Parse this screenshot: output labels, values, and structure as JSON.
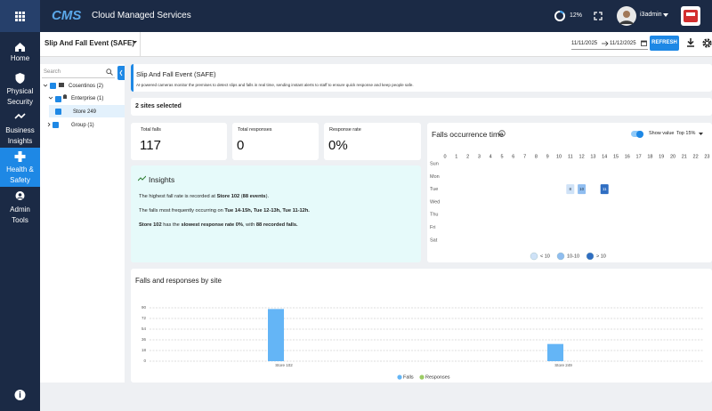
{
  "topbar": {
    "logo": "CMS",
    "app_name": "Cloud Managed Services",
    "progress": "12%",
    "user": "i3admin"
  },
  "sidebar": {
    "items": [
      "Home",
      "Physical Security",
      "Business Insights",
      "Health & Safety",
      "Admin Tools"
    ],
    "active": 3
  },
  "header": {
    "module": "Slip And Fall Event (SAFE)",
    "date_from": "11/11/2025",
    "date_to": "11/12/2025",
    "refresh": "REFRESH"
  },
  "tree": {
    "search_placeholder": "Search",
    "nodes": [
      "Cosentinos (2)",
      "Enterprise (1)",
      "Store 249",
      "Group (1)"
    ]
  },
  "intro": {
    "title": "Slip And Fall Event (SAFE)",
    "description": "AI-powered cameras monitor the premises to detect slips and falls in real time, sending instant alerts to staff to ensure quick response and keep people safe."
  },
  "sites_selected": "2 sites selected",
  "stats": [
    {
      "label": "Total falls",
      "value": "117"
    },
    {
      "label": "Total responses",
      "value": "0"
    },
    {
      "label": "Response rate",
      "value": "0%"
    }
  ],
  "insights": {
    "title": "Insights",
    "lines": [
      [
        {
          "text": "The highest fall rate is recorded at "
        },
        {
          "text": "Store 102",
          "bold": true
        },
        {
          "text": " ("
        },
        {
          "text": "88 events",
          "bold": true
        },
        {
          "text": ")."
        }
      ],
      [
        {
          "text": "The falls most frequently occurring on "
        },
        {
          "text": "Tue 14-15h, Tue 12-13h, Tue 11-12h.",
          "bold": true
        }
      ],
      [
        {
          "text": "Store 102",
          "bold": true
        },
        {
          "text": " has the "
        },
        {
          "text": "slowest response rate 0%",
          "bold": true
        },
        {
          "text": ", with "
        },
        {
          "text": "88 recorded falls.",
          "bold": true
        }
      ]
    ]
  },
  "chart_data": [
    {
      "type": "heatmap",
      "title": "Falls occurrence time",
      "show_value_label": "Show value",
      "filter": "Top 15%",
      "x": [
        0,
        1,
        2,
        3,
        4,
        5,
        6,
        7,
        8,
        9,
        10,
        11,
        12,
        13,
        14,
        15,
        16,
        17,
        18,
        19,
        20,
        21,
        22,
        23
      ],
      "y": [
        "Sun",
        "Mon",
        "Tue",
        "Wed",
        "Thu",
        "Fri",
        "Sat"
      ],
      "values": [
        [
          null,
          null,
          null,
          null,
          null,
          null,
          null,
          null,
          null,
          null,
          null,
          null,
          null,
          null,
          null,
          null,
          null,
          null,
          null,
          null,
          null,
          null,
          null,
          null
        ],
        [
          null,
          null,
          null,
          null,
          null,
          null,
          null,
          null,
          null,
          null,
          null,
          null,
          null,
          null,
          null,
          null,
          null,
          null,
          null,
          null,
          null,
          null,
          null,
          null
        ],
        [
          null,
          null,
          null,
          null,
          null,
          null,
          null,
          null,
          null,
          null,
          null,
          8,
          10,
          null,
          11,
          null,
          null,
          null,
          null,
          null,
          null,
          null,
          null,
          null
        ],
        [
          null,
          null,
          null,
          null,
          null,
          null,
          null,
          null,
          null,
          null,
          null,
          null,
          null,
          null,
          null,
          null,
          null,
          null,
          null,
          null,
          null,
          null,
          null,
          null
        ],
        [
          null,
          null,
          null,
          null,
          null,
          null,
          null,
          null,
          null,
          null,
          null,
          null,
          null,
          null,
          null,
          null,
          null,
          null,
          null,
          null,
          null,
          null,
          null,
          null
        ],
        [
          null,
          null,
          null,
          null,
          null,
          null,
          null,
          null,
          null,
          null,
          null,
          null,
          null,
          null,
          null,
          null,
          null,
          null,
          null,
          null,
          null,
          null,
          null,
          null
        ],
        [
          null,
          null,
          null,
          null,
          null,
          null,
          null,
          null,
          null,
          null,
          null,
          null,
          null,
          null,
          null,
          null,
          null,
          null,
          null,
          null,
          null,
          null,
          null,
          null
        ]
      ],
      "threshold": 10,
      "legend": [
        {
          "label": "< 10",
          "color": "#cfe2f7"
        },
        {
          "label": "10-10",
          "color": "#8fbdf0"
        },
        {
          "label": "> 10",
          "color": "#2f6ec2"
        }
      ]
    },
    {
      "type": "bar",
      "title": "Falls and responses by site",
      "categories": [
        "Store 102",
        "Store 249"
      ],
      "series": [
        {
          "name": "Falls",
          "color": "#64b5f6",
          "values": [
            88,
            29
          ]
        },
        {
          "name": "Responses",
          "color": "#9ccc65",
          "values": [
            0,
            0
          ]
        }
      ],
      "ylim": [
        0,
        90
      ],
      "yticks": [
        0,
        18,
        36,
        54,
        72,
        90
      ],
      "grid": true
    }
  ]
}
